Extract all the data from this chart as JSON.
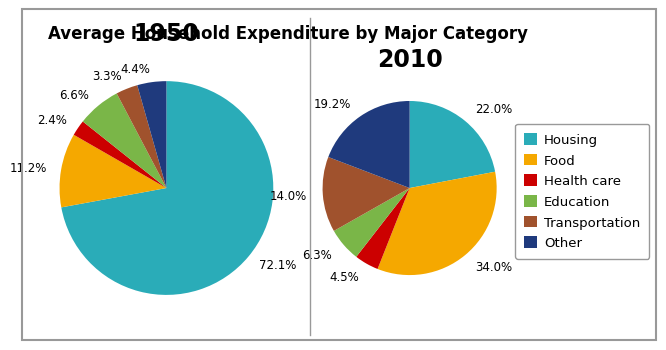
{
  "title": "Average Household Expenditure by Major Category",
  "categories": [
    "Housing",
    "Food",
    "Health care",
    "Education",
    "Transportation",
    "Other"
  ],
  "colors": [
    "#2AACB8",
    "#F5A800",
    "#CC0000",
    "#7AB648",
    "#A0522D",
    "#1F3A7D"
  ],
  "values_1950": [
    72.1,
    11.2,
    2.4,
    6.6,
    3.3,
    4.4
  ],
  "values_2010": [
    22.0,
    34.0,
    4.5,
    6.3,
    14.0,
    19.2
  ],
  "labels_1950": [
    "72.1%",
    "11.2%",
    "2.4%",
    "6.6%",
    "3.3%",
    "4.4%"
  ],
  "labels_2010": [
    "22.0%",
    "34.0%",
    "4.5%",
    "6.3%",
    "14.0%",
    "19.2%"
  ],
  "year_1950": "1950",
  "year_2010": "2010",
  "bg_color": "#FFFFFF",
  "border_color": "#999999",
  "title_fontsize": 12,
  "year_fontsize": 17,
  "label_fontsize": 8.5,
  "legend_fontsize": 9.5,
  "startangle_1950": 90,
  "startangle_2010": 90
}
